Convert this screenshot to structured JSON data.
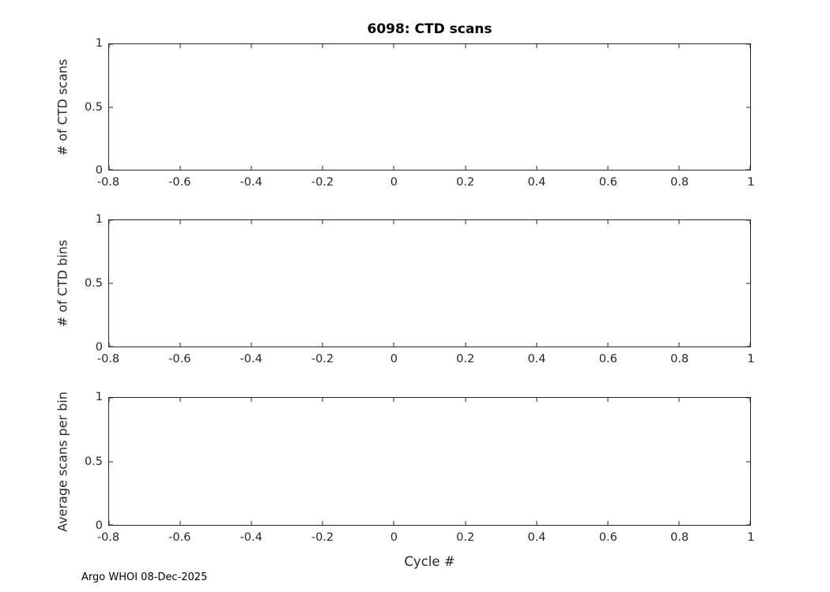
{
  "figure": {
    "title": "6098: CTD scans",
    "xlabel": "Cycle #",
    "footer": "Argo WHOI 08-Dec-2025",
    "axis_color": "#262626",
    "background": "#ffffff"
  },
  "chart_data": [
    {
      "type": "line",
      "title": "6098: CTD scans",
      "ylabel": "# of CTD scans",
      "xlabel": "",
      "xlim": [
        -0.8,
        1
      ],
      "ylim": [
        0,
        1
      ],
      "xtick_values": [
        -0.8,
        -0.6,
        -0.4,
        -0.2,
        0,
        0.2,
        0.4,
        0.6,
        0.8,
        1
      ],
      "xtick_labels": [
        "-0.8",
        "-0.6",
        "-0.4",
        "-0.2",
        "0",
        "0.2",
        "0.4",
        "0.6",
        "0.8",
        "1"
      ],
      "ytick_values": [
        0,
        0.5,
        1
      ],
      "ytick_labels": [
        "0",
        "0.5",
        "1"
      ],
      "grid": false,
      "legend": null,
      "series": []
    },
    {
      "type": "line",
      "title": "",
      "ylabel": "# of CTD bins",
      "xlabel": "",
      "xlim": [
        -0.8,
        1
      ],
      "ylim": [
        0,
        1
      ],
      "xtick_values": [
        -0.8,
        -0.6,
        -0.4,
        -0.2,
        0,
        0.2,
        0.4,
        0.6,
        0.8,
        1
      ],
      "xtick_labels": [
        "-0.8",
        "-0.6",
        "-0.4",
        "-0.2",
        "0",
        "0.2",
        "0.4",
        "0.6",
        "0.8",
        "1"
      ],
      "ytick_values": [
        0,
        0.5,
        1
      ],
      "ytick_labels": [
        "0",
        "0.5",
        "1"
      ],
      "grid": false,
      "legend": null,
      "series": []
    },
    {
      "type": "line",
      "title": "",
      "ylabel": "Average scans per bin",
      "xlabel": "Cycle #",
      "xlim": [
        -0.8,
        1
      ],
      "ylim": [
        0,
        1
      ],
      "xtick_values": [
        -0.8,
        -0.6,
        -0.4,
        -0.2,
        0,
        0.2,
        0.4,
        0.6,
        0.8,
        1
      ],
      "xtick_labels": [
        "-0.8",
        "-0.6",
        "-0.4",
        "-0.2",
        "0",
        "0.2",
        "0.4",
        "0.6",
        "0.8",
        "1"
      ],
      "ytick_values": [
        0,
        0.5,
        1
      ],
      "ytick_labels": [
        "0",
        "0.5",
        "1"
      ],
      "grid": false,
      "legend": null,
      "series": []
    }
  ]
}
